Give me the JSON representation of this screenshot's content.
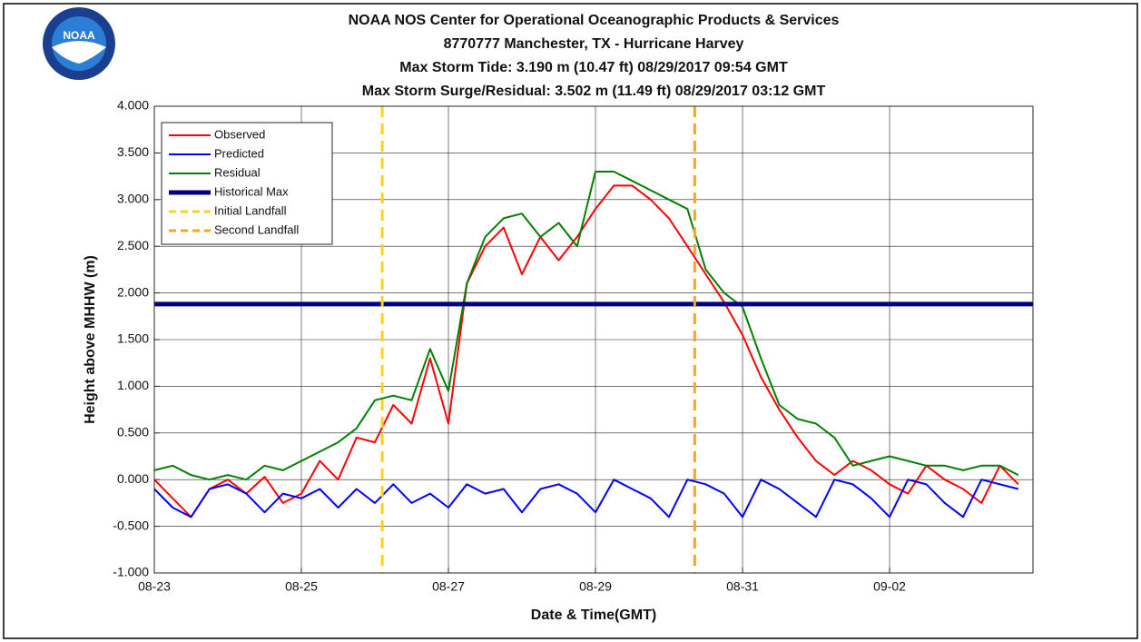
{
  "chart_data": {
    "type": "line",
    "title_lines": [
      "NOAA NOS Center for Operational Oceanographic Products & Services",
      "8770777 Manchester, TX - Hurricane Harvey",
      "Max Storm Tide: 3.190 m (10.47 ft) 08/29/2017 09:54 GMT",
      "Max Storm Surge/Residual: 3.502 m (11.49 ft) 08/29/2017 03:12 GMT"
    ],
    "logo_text": "NOAA",
    "x_label": "Date & Time(GMT)",
    "y_label": "Height above MHHW (m)",
    "xlim": [
      0,
      11.95
    ],
    "ylim": [
      -1,
      4
    ],
    "xticks": [
      {
        "value": 0,
        "label": "08-23"
      },
      {
        "value": 2,
        "label": "08-25"
      },
      {
        "value": 4,
        "label": "08-27"
      },
      {
        "value": 6,
        "label": "08-29"
      },
      {
        "value": 8,
        "label": "08-31"
      },
      {
        "value": 10,
        "label": "09-02"
      }
    ],
    "yticks": [
      {
        "value": -1,
        "label": "-1.000"
      },
      {
        "value": -0.5,
        "label": "-0.500"
      },
      {
        "value": 0,
        "label": "0.000"
      },
      {
        "value": 0.5,
        "label": "0.500"
      },
      {
        "value": 1,
        "label": "1.000"
      },
      {
        "value": 1.5,
        "label": "1.500"
      },
      {
        "value": 2,
        "label": "2.000"
      },
      {
        "value": 2.5,
        "label": "2.500"
      },
      {
        "value": 3,
        "label": "3.000"
      },
      {
        "value": 3.5,
        "label": "3.500"
      },
      {
        "value": 4,
        "label": "4.000"
      }
    ],
    "grid": true,
    "legend": "upper left",
    "x": [
      0,
      0.25,
      0.5,
      0.75,
      1,
      1.25,
      1.5,
      1.75,
      2,
      2.25,
      2.5,
      2.75,
      3,
      3.25,
      3.5,
      3.75,
      4,
      4.25,
      4.5,
      4.75,
      5,
      5.25,
      5.5,
      5.75,
      6,
      6.25,
      6.5,
      6.75,
      7,
      7.25,
      7.5,
      7.75,
      8,
      8.25,
      8.5,
      8.75,
      9,
      9.25,
      9.5,
      9.75,
      10,
      10.25,
      10.5,
      10.75,
      11,
      11.25,
      11.5,
      11.75
    ],
    "series": [
      {
        "name": "Observed",
        "color": "#ff0000",
        "values": [
          0,
          -0.2,
          -0.4,
          -0.1,
          0,
          -0.15,
          0.03,
          -0.25,
          -0.15,
          0.2,
          0,
          0.45,
          0.4,
          0.8,
          0.6,
          1.3,
          0.6,
          2.1,
          2.5,
          2.7,
          2.2,
          2.6,
          2.35,
          2.6,
          2.9,
          3.15,
          3.15,
          3.0,
          2.8,
          2.5,
          2.2,
          1.9,
          1.55,
          1.1,
          0.75,
          0.45,
          0.2,
          0.05,
          0.2,
          0.1,
          -0.05,
          -0.15,
          0.15,
          0,
          -0.1,
          -0.25,
          0.15,
          -0.05
        ]
      },
      {
        "name": "Predicted",
        "color": "#0000ff",
        "values": [
          -0.1,
          -0.3,
          -0.4,
          -0.1,
          -0.05,
          -0.15,
          -0.35,
          -0.15,
          -0.2,
          -0.1,
          -0.3,
          -0.1,
          -0.25,
          -0.05,
          -0.25,
          -0.15,
          -0.3,
          -0.05,
          -0.15,
          -0.1,
          -0.35,
          -0.1,
          -0.05,
          -0.15,
          -0.35,
          0,
          -0.1,
          -0.2,
          -0.4,
          0,
          -0.05,
          -0.15,
          -0.4,
          0,
          -0.1,
          -0.25,
          -0.4,
          0,
          -0.05,
          -0.2,
          -0.4,
          0,
          -0.05,
          -0.25,
          -0.4,
          0,
          -0.05,
          -0.1
        ]
      },
      {
        "name": "Residual",
        "color": "#008000",
        "values": [
          0.1,
          0.15,
          0.05,
          0,
          0.05,
          0,
          0.15,
          0.1,
          0.2,
          0.3,
          0.4,
          0.55,
          0.85,
          0.9,
          0.85,
          1.4,
          0.95,
          2.1,
          2.6,
          2.8,
          2.85,
          2.6,
          2.75,
          2.5,
          3.3,
          3.3,
          3.2,
          3.1,
          3.0,
          2.9,
          2.25,
          2.0,
          1.85,
          1.3,
          0.8,
          0.65,
          0.6,
          0.45,
          0.15,
          0.2,
          0.25,
          0.2,
          0.15,
          0.15,
          0.1,
          0.15,
          0.15,
          0.05
        ]
      }
    ],
    "reference_lines": [
      {
        "name": "Historical Max",
        "color": "#000080",
        "y": 1.88
      }
    ],
    "vertical_lines": [
      {
        "name": "Initial Landfall",
        "color": "#ffd21a",
        "x": 3.1
      },
      {
        "name": "Second Landfall",
        "color": "#f5a623",
        "x": 7.35
      }
    ]
  }
}
